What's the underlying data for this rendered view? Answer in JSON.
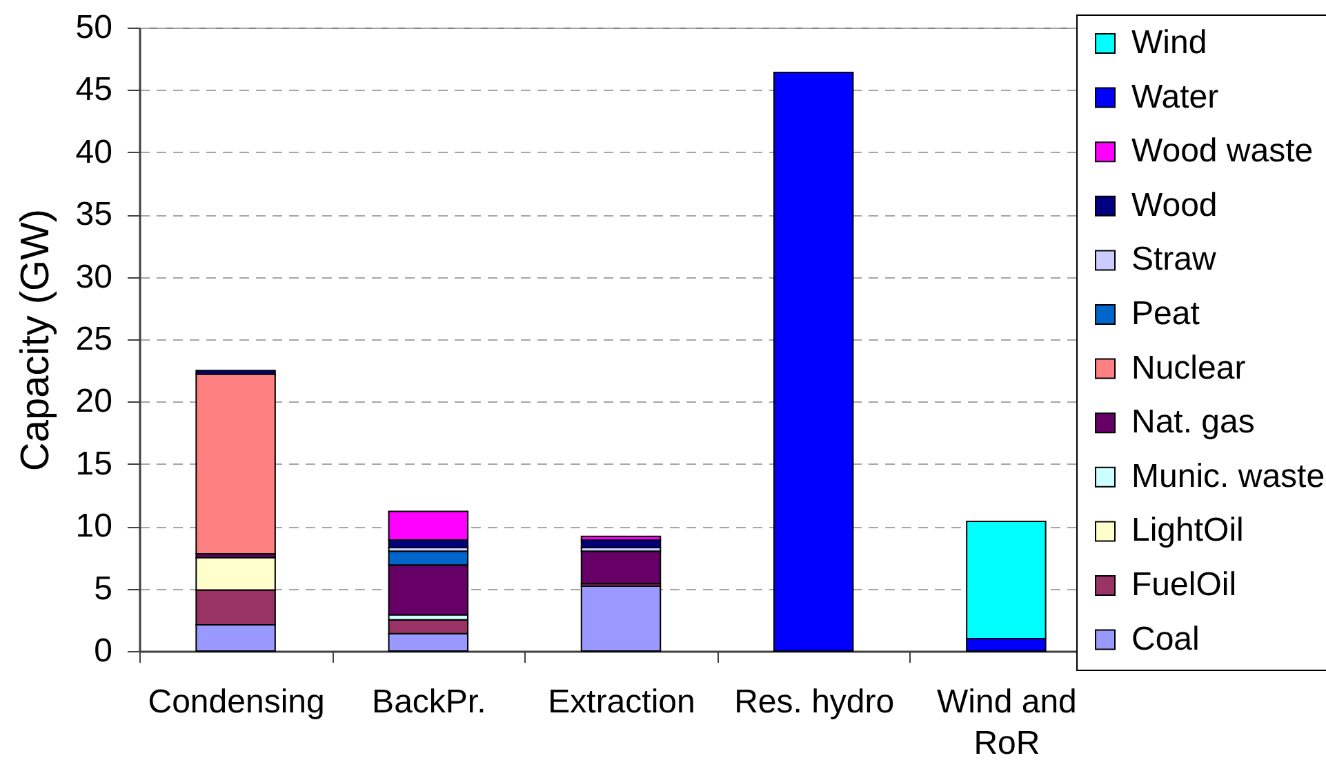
{
  "chart_data": {
    "type": "bar",
    "stacked": true,
    "ylabel": "Capacity (GW)",
    "categories": [
      "Condensing",
      "BackPr.",
      "Extraction",
      "Res. hydro",
      "Wind and RoR"
    ],
    "ylim": [
      0,
      50
    ],
    "yticks": [
      0,
      5,
      10,
      15,
      20,
      25,
      30,
      35,
      40,
      45,
      50
    ],
    "grid": "y",
    "legend": "right",
    "series": [
      {
        "name": "Coal",
        "color": "#9999ff",
        "values": [
          2.1,
          1.4,
          5.2,
          null,
          null
        ]
      },
      {
        "name": "FuelOil",
        "color": "#993366",
        "values": [
          2.8,
          1.1,
          0.2,
          null,
          null
        ]
      },
      {
        "name": "LightOil",
        "color": "#ffffcc",
        "values": [
          2.6,
          null,
          null,
          null,
          null
        ]
      },
      {
        "name": "Munic. waste",
        "color": "#ccffff",
        "values": [
          null,
          0.4,
          null,
          null,
          null
        ]
      },
      {
        "name": "Nat. gas",
        "color": "#660066",
        "values": [
          0.3,
          4.0,
          2.6,
          null,
          null
        ]
      },
      {
        "name": "Nuclear",
        "color": "#ff8080",
        "values": [
          14.4,
          null,
          null,
          null,
          null
        ]
      },
      {
        "name": "Peat",
        "color": "#0066cc",
        "values": [
          null,
          1.1,
          null,
          null,
          null
        ]
      },
      {
        "name": "Straw",
        "color": "#ccccff",
        "values": [
          null,
          0.3,
          0.3,
          null,
          null
        ]
      },
      {
        "name": "Wood",
        "color": "#000080",
        "values": [
          0.3,
          0.6,
          0.6,
          null,
          null
        ]
      },
      {
        "name": "Wood waste",
        "color": "#ff00ff",
        "values": [
          null,
          2.3,
          0.3,
          null,
          null
        ]
      },
      {
        "name": "Water",
        "color": "#0000ff",
        "values": [
          null,
          null,
          null,
          46.4,
          1.0
        ]
      },
      {
        "name": "Wind",
        "color": "#00ffff",
        "values": [
          null,
          null,
          null,
          null,
          9.4
        ]
      }
    ]
  }
}
